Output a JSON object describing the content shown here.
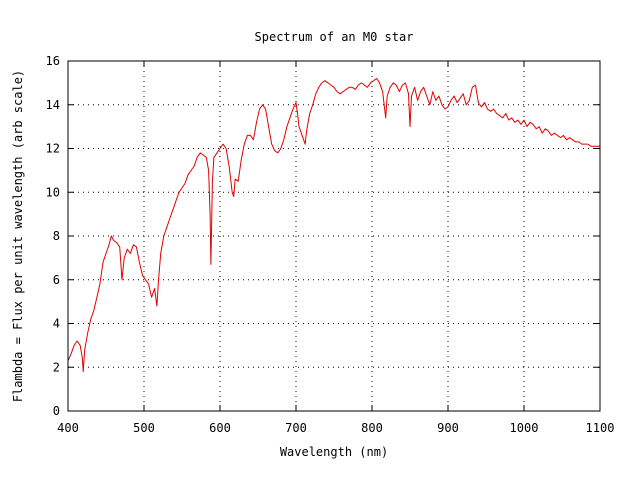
{
  "chart_data": {
    "type": "line",
    "title": "Spectrum of an M0 star",
    "xlabel": "Wavelength (nm)",
    "ylabel": "Flambda = Flux per unit wavelength (arb scale)",
    "xlim": [
      400,
      1100
    ],
    "ylim": [
      0,
      16
    ],
    "xticks": [
      400,
      500,
      600,
      700,
      800,
      900,
      1000,
      1100
    ],
    "yticks": [
      0,
      2,
      4,
      6,
      8,
      10,
      12,
      14,
      16
    ],
    "grid": true,
    "legend": "none",
    "colors": {
      "series": "#e00000",
      "axes": "#000000",
      "grid": "#000000"
    },
    "series": [
      {
        "x": [
          400,
          404,
          408,
          412,
          416,
          419,
          420,
          422,
          426,
          430,
          434,
          438,
          442,
          446,
          450,
          454,
          457,
          460,
          464,
          468,
          471,
          474,
          478,
          482,
          486,
          490,
          494,
          498,
          502,
          506,
          510,
          514,
          517,
          519,
          522,
          526,
          530,
          534,
          538,
          542,
          546,
          550,
          554,
          558,
          562,
          566,
          570,
          574,
          578,
          582,
          585,
          587,
          588,
          590,
          592,
          596,
          600,
          604,
          608,
          612,
          616,
          618,
          620,
          624,
          628,
          632,
          636,
          640,
          644,
          648,
          652,
          656,
          660,
          664,
          668,
          672,
          676,
          680,
          684,
          688,
          692,
          696,
          700,
          702,
          704,
          708,
          712,
          714,
          718,
          722,
          726,
          730,
          734,
          738,
          742,
          746,
          750,
          754,
          758,
          762,
          766,
          770,
          774,
          778,
          782,
          786,
          790,
          794,
          798,
          802,
          806,
          810,
          814,
          818,
          820,
          824,
          828,
          832,
          836,
          840,
          844,
          848,
          850,
          852,
          856,
          860,
          864,
          868,
          872,
          876,
          880,
          884,
          888,
          892,
          896,
          900,
          904,
          908,
          912,
          916,
          920,
          924,
          928,
          932,
          936,
          940,
          944,
          948,
          952,
          956,
          960,
          964,
          968,
          972,
          976,
          980,
          984,
          988,
          992,
          996,
          1000,
          1004,
          1008,
          1012,
          1016,
          1020,
          1024,
          1028,
          1032,
          1036,
          1040,
          1044,
          1048,
          1052,
          1056,
          1060,
          1064,
          1068,
          1072,
          1076,
          1080,
          1084,
          1088,
          1092,
          1096,
          1100
        ],
        "y": [
          2.3,
          2.6,
          3.0,
          3.2,
          3.0,
          2.4,
          1.8,
          2.8,
          3.6,
          4.2,
          4.6,
          5.2,
          5.8,
          6.8,
          7.2,
          7.6,
          8.0,
          7.8,
          7.7,
          7.5,
          6.0,
          7.0,
          7.4,
          7.2,
          7.6,
          7.5,
          6.8,
          6.2,
          6.0,
          5.8,
          5.2,
          5.6,
          4.8,
          5.9,
          7.2,
          8.0,
          8.4,
          8.8,
          9.2,
          9.6,
          10.0,
          10.2,
          10.4,
          10.8,
          11.0,
          11.2,
          11.6,
          11.8,
          11.7,
          11.6,
          11.0,
          9.0,
          6.7,
          10.5,
          11.6,
          11.8,
          12.0,
          12.2,
          12.0,
          11.2,
          10.0,
          9.8,
          10.6,
          10.5,
          11.5,
          12.2,
          12.6,
          12.6,
          12.4,
          13.2,
          13.8,
          14.0,
          13.8,
          13.0,
          12.2,
          11.9,
          11.8,
          12.0,
          12.4,
          13.0,
          13.4,
          13.8,
          14.1,
          13.6,
          13.0,
          12.6,
          12.2,
          12.8,
          13.6,
          14.0,
          14.5,
          14.8,
          15.0,
          15.1,
          15.0,
          14.9,
          14.8,
          14.6,
          14.5,
          14.6,
          14.7,
          14.8,
          14.8,
          14.7,
          14.9,
          15.0,
          14.9,
          14.8,
          15.0,
          15.1,
          15.2,
          15.0,
          14.6,
          13.4,
          14.4,
          14.8,
          15.0,
          14.9,
          14.6,
          14.9,
          15.0,
          14.5,
          13.0,
          14.4,
          14.8,
          14.2,
          14.6,
          14.8,
          14.4,
          14.0,
          14.6,
          14.2,
          14.4,
          14.0,
          13.8,
          13.9,
          14.2,
          14.4,
          14.1,
          14.3,
          14.5,
          14.0,
          14.2,
          14.8,
          14.9,
          14.1,
          13.9,
          14.1,
          13.8,
          13.7,
          13.8,
          13.6,
          13.5,
          13.4,
          13.6,
          13.3,
          13.4,
          13.2,
          13.3,
          13.1,
          13.3,
          13.0,
          13.2,
          13.1,
          12.9,
          13.0,
          12.7,
          12.9,
          12.8,
          12.6,
          12.7,
          12.6,
          12.5,
          12.6,
          12.4,
          12.5,
          12.4,
          12.3,
          12.3,
          12.2,
          12.2,
          12.2,
          12.1,
          12.1,
          12.1,
          12.1
        ]
      }
    ]
  }
}
